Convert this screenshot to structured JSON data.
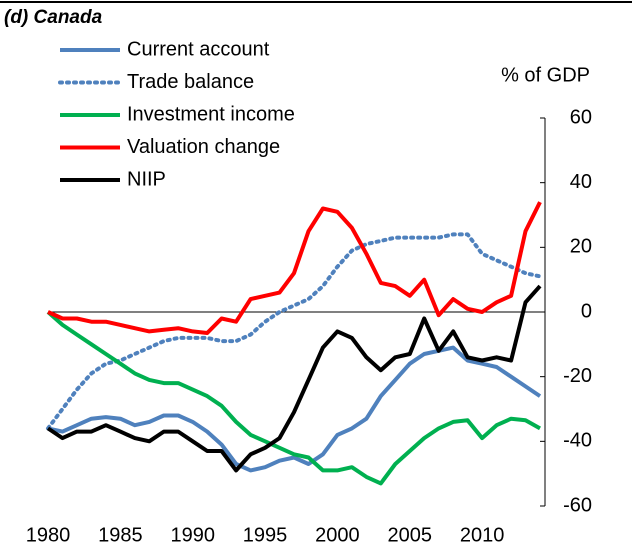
{
  "chart_data": {
    "type": "line",
    "title": "(d) Canada",
    "y_axis_label": "% of GDP",
    "x": [
      1980,
      1981,
      1982,
      1983,
      1984,
      1985,
      1986,
      1987,
      1988,
      1989,
      1990,
      1991,
      1992,
      1993,
      1994,
      1995,
      1996,
      1997,
      1998,
      1999,
      2000,
      2001,
      2002,
      2003,
      2004,
      2005,
      2006,
      2007,
      2008,
      2009,
      2010,
      2011,
      2012,
      2013,
      2014
    ],
    "xlim": [
      1980,
      2014
    ],
    "xticks": [
      1980,
      1985,
      1990,
      1995,
      2000,
      2005,
      2010
    ],
    "ylim": [
      -60,
      60
    ],
    "yticks": [
      -60,
      -40,
      -20,
      0,
      20,
      40,
      60
    ],
    "y_axis_side": "right",
    "series": [
      {
        "name": "Current account",
        "color": "#4f81bd",
        "line_style": "solid",
        "values": [
          -36,
          -37,
          -35,
          -33,
          -32.5,
          -33,
          -35,
          -34,
          -32,
          -32,
          -34,
          -37,
          -41,
          -47,
          -49,
          -48,
          -46,
          -45,
          -47,
          -44,
          -38,
          -36,
          -33,
          -26,
          -21,
          -16,
          -13,
          -12,
          -11,
          -15,
          -16,
          -17,
          -20,
          -23,
          -26
        ]
      },
      {
        "name": "Trade balance",
        "color": "#4f81bd",
        "line_style": "dotted",
        "values": [
          -36,
          -30,
          -24,
          -19,
          -16,
          -15,
          -13,
          -11,
          -9,
          -8,
          -8,
          -8,
          -9,
          -9,
          -7,
          -3,
          0,
          2,
          4,
          8,
          14,
          19,
          21,
          22,
          23,
          23,
          23,
          23,
          24,
          24,
          18,
          16,
          14,
          12,
          11
        ]
      },
      {
        "name": "Investment income",
        "color": "#00b050",
        "line_style": "solid",
        "values": [
          0,
          -4,
          -7,
          -10,
          -13,
          -16,
          -19,
          -21,
          -22,
          -22,
          -24,
          -26,
          -29,
          -34,
          -38,
          -40,
          -42,
          -44,
          -45,
          -49,
          -49,
          -48,
          -51,
          -53,
          -47,
          -43,
          -39,
          -36,
          -34,
          -33.5,
          -39,
          -35,
          -33,
          -33.5,
          -36
        ]
      },
      {
        "name": "Valuation change",
        "color": "#ff0000",
        "line_style": "solid",
        "values": [
          0,
          -2,
          -2,
          -3,
          -3,
          -4,
          -5,
          -6,
          -5.5,
          -5,
          -6,
          -6.5,
          -2,
          -3,
          4,
          5,
          6,
          12,
          25,
          32,
          31,
          26,
          18,
          9,
          8,
          5,
          10,
          -1,
          4,
          1,
          0,
          3,
          5,
          25,
          34
        ]
      },
      {
        "name": "NIIP",
        "color": "#000000",
        "line_style": "solid",
        "values": [
          -36,
          -39,
          -37,
          -37,
          -35,
          -37,
          -39,
          -40,
          -37,
          -37,
          -40,
          -43,
          -43,
          -49,
          -44,
          -42,
          -39,
          -31,
          -21,
          -11,
          -6,
          -8,
          -14,
          -18,
          -14,
          -13,
          -2,
          -12,
          -6,
          -14,
          -15,
          -14,
          -15,
          3,
          8
        ]
      }
    ]
  }
}
